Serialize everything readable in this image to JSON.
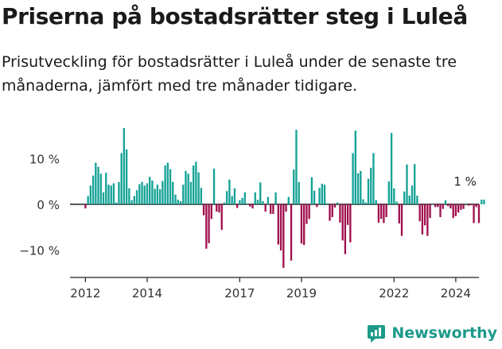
{
  "title": "Priserna på bostadsrätter steg i Luleå",
  "subtitle": "Prisutveckling för bostadsrätter i Luleå under de senaste tre månaderna, jämfört med tre månader tidigare.",
  "brand": {
    "name": "Newsworthy",
    "icon": "newsworthy-logo-icon",
    "color": "#1c9a8a"
  },
  "colors": {
    "positive": "#14a296",
    "negative": "#a0104d",
    "axis": "#222222",
    "text": "#333333"
  },
  "chart_data": {
    "type": "bar",
    "title": "Priserna på bostadsrätter steg i Luleå",
    "xlabel": "",
    "ylabel": "",
    "ylim": [
      -15,
      18
    ],
    "x_range": [
      2011.5,
      2024.75
    ],
    "y_ticks": [
      {
        "value": 10,
        "label": "10 %"
      },
      {
        "value": 0,
        "label": "0 %"
      },
      {
        "value": -10,
        "label": "−10 %"
      }
    ],
    "x_ticks": [
      {
        "value": 2012,
        "label": "2012"
      },
      {
        "value": 2014,
        "label": "2014"
      },
      {
        "value": 2017,
        "label": "2017"
      },
      {
        "value": 2019,
        "label": "2019"
      },
      {
        "value": 2022,
        "label": "2022"
      },
      {
        "value": 2024,
        "label": "2024"
      }
    ],
    "annotation": {
      "text": "1 %",
      "x": 2024.25,
      "y": 1
    },
    "series": [
      {
        "name": "Prisutveckling",
        "start_year": 2012,
        "step_months": 1,
        "values": [
          -0.9,
          1.8,
          4.1,
          6.3,
          9.1,
          8.2,
          6.7,
          2.6,
          6.9,
          4.3,
          4.1,
          4.6,
          0.4,
          4.9,
          11.2,
          16.7,
          12.0,
          3.5,
          0.9,
          1.8,
          3.1,
          4.4,
          4.9,
          4.1,
          4.6,
          6.0,
          5.2,
          3.4,
          4.3,
          3.3,
          5.1,
          8.5,
          9.1,
          7.7,
          4.9,
          2.1,
          1.0,
          0.7,
          4.3,
          7.3,
          6.7,
          4.9,
          8.5,
          9.3,
          7.0,
          3.6,
          -2.4,
          -9.7,
          -8.5,
          -3.2,
          7.8,
          -1.6,
          -1.8,
          -5.6,
          0.4,
          2.9,
          5.4,
          1.8,
          3.5,
          -0.8,
          0.9,
          1.4,
          2.6,
          0.0,
          -0.5,
          -0.9,
          2.6,
          1.0,
          4.8,
          0.7,
          -1.6,
          1.6,
          -2.1,
          -2.1,
          2.6,
          -8.8,
          -10.1,
          -13.9,
          -1.6,
          1.6,
          -12.3,
          7.6,
          16.3,
          4.9,
          -8.6,
          -8.9,
          -4.3,
          -3.2,
          5.9,
          3.0,
          -0.6,
          3.6,
          4.5,
          4.3,
          0.2,
          -3.6,
          -2.8,
          -0.7,
          0.4,
          -4.0,
          -7.9,
          -10.9,
          -4.5,
          -8.3,
          11.2,
          16.1,
          6.8,
          7.3,
          1.1,
          0.4,
          5.6,
          8.0,
          11.2,
          0.9,
          -4.0,
          -3.2,
          -4.1,
          -2.8,
          5.0,
          15.6,
          3.5,
          0.6,
          -4.2,
          -6.9,
          2.8,
          8.7,
          1.9,
          4.1,
          8.8,
          1.9,
          -3.7,
          -6.6,
          -4.6,
          -6.9,
          -3.0,
          0.0,
          -0.6,
          -0.6,
          -2.8,
          -1.0,
          0.9,
          -0.4,
          -0.9,
          -3.0,
          -2.6,
          -1.8,
          -1.2,
          -1.0,
          0.1,
          -0.3,
          -0.2,
          -4.1,
          -0.6,
          -4.1,
          1.0,
          1.0
        ]
      }
    ]
  }
}
